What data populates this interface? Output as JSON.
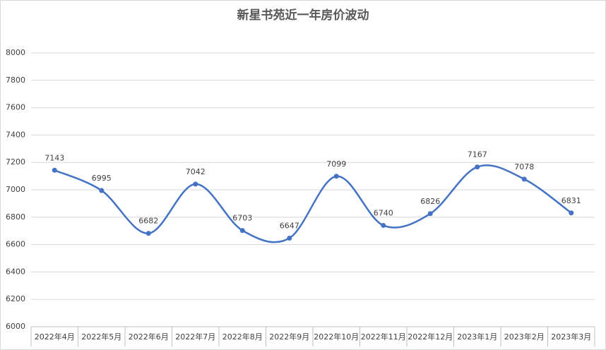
{
  "chart_data": {
    "type": "line",
    "title": "新星书苑近一年房价波动",
    "categories": [
      "2022年4月",
      "2022年5月",
      "2022年6月",
      "2022年7月",
      "2022年8月",
      "2022年9月",
      "2022年10月",
      "2022年11月",
      "2022年12月",
      "2023年1月",
      "2023年2月",
      "2023年3月"
    ],
    "values": [
      7143,
      6995,
      6682,
      7042,
      6703,
      6647,
      7099,
      6740,
      6826,
      7167,
      7078,
      6831
    ],
    "color": "#4472c4",
    "smooth": true,
    "markers": true,
    "data_labels": true,
    "ylim": [
      6000,
      8000
    ],
    "yticks": [
      6000,
      6200,
      6400,
      6600,
      6800,
      7000,
      7200,
      7400,
      7600,
      7800,
      8000
    ],
    "grid": true
  }
}
